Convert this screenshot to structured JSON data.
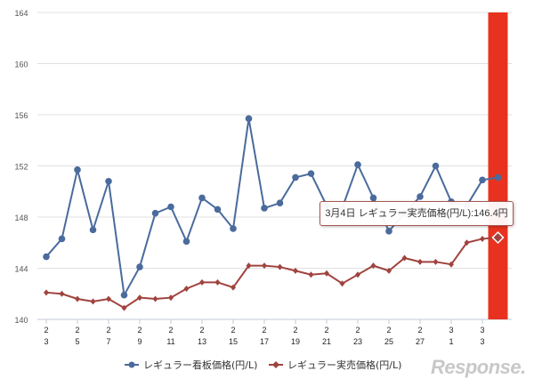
{
  "chart_data": {
    "type": "line",
    "title": "",
    "xlabel": "",
    "ylabel": "",
    "ylim": [
      140,
      164
    ],
    "yticks": [
      140,
      144,
      148,
      152,
      156,
      160,
      164
    ],
    "grid": true,
    "legend_position": "bottom",
    "x": [
      "2/3",
      "2/4",
      "2/5",
      "2/6",
      "2/7",
      "2/8",
      "2/9",
      "2/10",
      "2/11",
      "2/12",
      "2/13",
      "2/14",
      "2/15",
      "2/16",
      "2/17",
      "2/18",
      "2/19",
      "2/20",
      "2/21",
      "2/22",
      "2/23",
      "2/24",
      "2/25",
      "2/26",
      "2/27",
      "2/28",
      "3/1",
      "3/2",
      "3/3",
      "3/4"
    ],
    "xtick_labels": [
      [
        "2",
        "3"
      ],
      [
        "2",
        "5"
      ],
      [
        "2",
        "7"
      ],
      [
        "2",
        "9"
      ],
      [
        "2",
        "11"
      ],
      [
        "2",
        "13"
      ],
      [
        "2",
        "15"
      ],
      [
        "2",
        "17"
      ],
      [
        "2",
        "19"
      ],
      [
        "2",
        "21"
      ],
      [
        "2",
        "23"
      ],
      [
        "2",
        "25"
      ],
      [
        "2",
        "27"
      ],
      [
        "3",
        "1"
      ],
      [
        "3",
        "3"
      ]
    ],
    "series": [
      {
        "name": "レギュラー看板価格(円/L)",
        "color": "#4a6b9c",
        "marker": "circle",
        "values": [
          144.9,
          146.3,
          151.7,
          147.0,
          150.8,
          141.9,
          144.1,
          148.3,
          148.8,
          146.1,
          149.5,
          148.6,
          147.1,
          155.7,
          148.7,
          149.1,
          151.1,
          151.4,
          148.9,
          148.7,
          152.1,
          149.5,
          146.9,
          148.3,
          149.6,
          152.0,
          149.2,
          148.9,
          150.9,
          151.1
        ]
      },
      {
        "name": "レギュラー実売価格(円/L)",
        "color": "#a0433e",
        "marker": "diamond",
        "values": [
          142.1,
          142.0,
          141.6,
          141.4,
          141.6,
          140.9,
          141.7,
          141.6,
          141.7,
          142.4,
          142.9,
          142.9,
          142.5,
          144.2,
          144.2,
          144.1,
          143.8,
          143.5,
          143.6,
          142.8,
          143.5,
          144.2,
          143.8,
          144.8,
          144.5,
          144.5,
          144.3,
          146.0,
          146.3,
          146.4
        ]
      }
    ],
    "highlight": {
      "x": "3/4",
      "color": "#e8321f"
    },
    "tooltip": "3月4日 レギュラー実売価格(円/L):146.4円"
  },
  "watermark": "Response."
}
